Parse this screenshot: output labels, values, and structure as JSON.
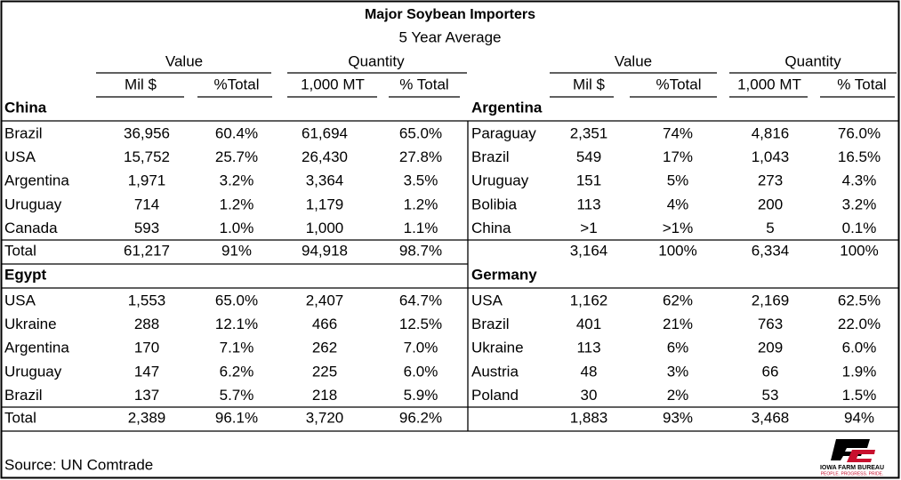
{
  "title": "Major Soybean Importers",
  "subtitle": "5 Year Average",
  "group_headers": [
    "Value",
    "Quantity",
    "Value",
    "Quantity"
  ],
  "column_headers": [
    "Mil $",
    "%Total",
    "1,000 MT",
    "% Total",
    "Mil $",
    "%Total",
    "1,000 MT",
    "% Total"
  ],
  "sections": [
    {
      "left": {
        "name": "China",
        "rows": [
          [
            "Brazil",
            "36,956",
            "60.4%",
            "61,694",
            "65.0%"
          ],
          [
            "USA",
            "15,752",
            "25.7%",
            "26,430",
            "27.8%"
          ],
          [
            "Argentina",
            "1,971",
            "3.2%",
            "3,364",
            "3.5%"
          ],
          [
            "Uruguay",
            "714",
            "1.2%",
            "1,179",
            "1.2%"
          ],
          [
            "Canada",
            "593",
            "1.0%",
            "1,000",
            "1.1%"
          ]
        ],
        "total": [
          "Total",
          "61,217",
          "91%",
          "94,918",
          "98.7%"
        ]
      },
      "right": {
        "name": "Argentina",
        "rows": [
          [
            "Paraguay",
            "2,351",
            "74%",
            "4,816",
            "76.0%"
          ],
          [
            "Brazil",
            "549",
            "17%",
            "1,043",
            "16.5%"
          ],
          [
            "Uruguay",
            "151",
            "5%",
            "273",
            "4.3%"
          ],
          [
            "Bolibia",
            "113",
            "4%",
            "200",
            "3.2%"
          ],
          [
            "China",
            ">1",
            ">1%",
            "5",
            "0.1%"
          ]
        ],
        "total": [
          "3,164",
          "100%",
          "6,334",
          "100%"
        ]
      }
    },
    {
      "left": {
        "name": "Egypt",
        "rows": [
          [
            "USA",
            "1,553",
            "65.0%",
            "2,407",
            "64.7%"
          ],
          [
            "Ukraine",
            "288",
            "12.1%",
            "466",
            "12.5%"
          ],
          [
            "Argentina",
            "170",
            "7.1%",
            "262",
            "7.0%"
          ],
          [
            "Uruguay",
            "147",
            "6.2%",
            "225",
            "6.0%"
          ],
          [
            "Brazil",
            "137",
            "5.7%",
            "218",
            "5.9%"
          ]
        ],
        "total": [
          "Total",
          "2,389",
          "96.1%",
          "3,720",
          "96.2%"
        ]
      },
      "right": {
        "name": "Germany",
        "rows": [
          [
            "USA",
            "1,162",
            "62%",
            "2,169",
            "62.5%"
          ],
          [
            "Brazil",
            "401",
            "21%",
            "763",
            "22.0%"
          ],
          [
            "Ukraine",
            "113",
            "6%",
            "209",
            "6.0%"
          ],
          [
            "Austria",
            "48",
            "3%",
            "66",
            "1.9%"
          ],
          [
            "Poland",
            "30",
            "2%",
            "53",
            "1.5%"
          ]
        ],
        "total": [
          "1,883",
          "93%",
          "3,468",
          "94%"
        ]
      }
    }
  ],
  "source": "Source: UN Comtrade",
  "logo": {
    "line1": "IOWA FARM BUREAU",
    "line2": "PEOPLE. PROGRESS. PRIDE."
  }
}
